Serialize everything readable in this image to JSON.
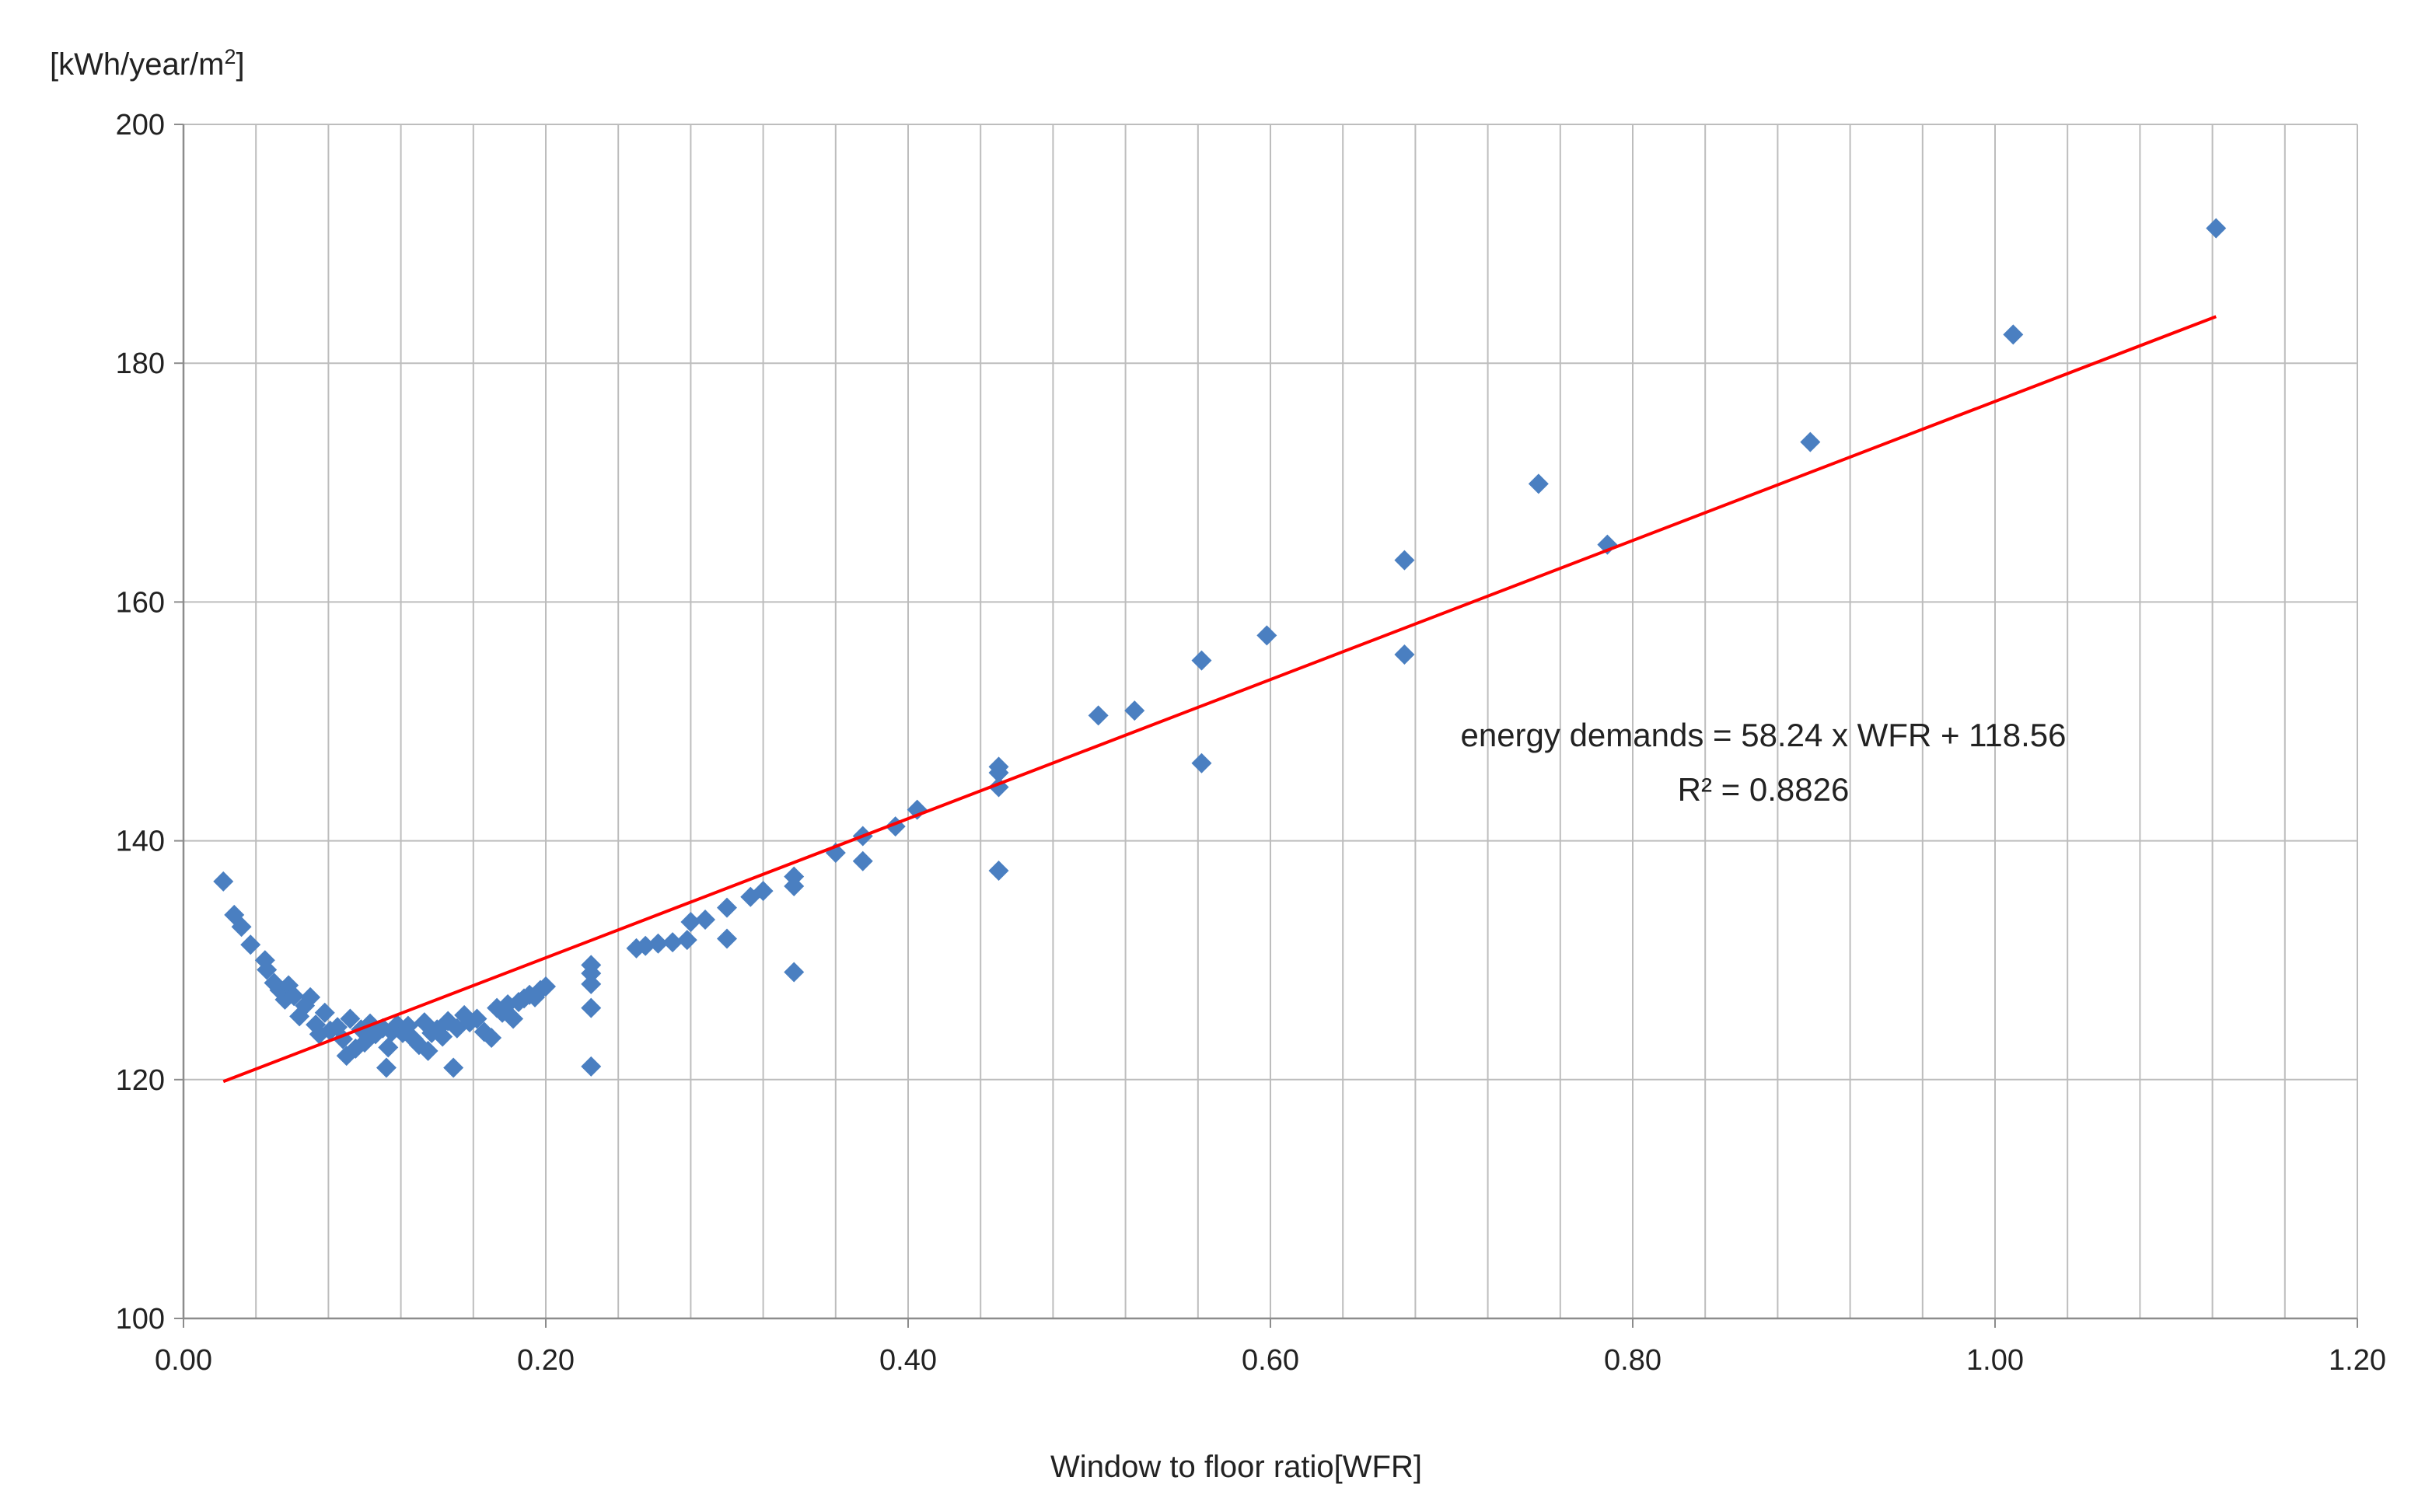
{
  "chart_data": {
    "type": "scatter",
    "title": "",
    "ylabel_main": "[kWh/year/m",
    "ylabel_sup": "2",
    "ylabel_close": "]",
    "xlabel": "Window to floor ratio[WFR]",
    "xlim": [
      0,
      1.2
    ],
    "ylim": [
      100,
      200
    ],
    "xticks": [
      "0.00",
      "0.20",
      "0.40",
      "0.60",
      "0.80",
      "1.00",
      "1.20"
    ],
    "yticks": [
      "100",
      "120",
      "140",
      "160",
      "180",
      "200"
    ],
    "minor_x_step": 0.04,
    "major_y_step": 20,
    "grid": true,
    "legend": "none",
    "series": [
      {
        "name": "energy demands",
        "marker": "diamond",
        "color": "#4a7fc1",
        "points": [
          [
            0.022,
            136.6
          ],
          [
            0.028,
            133.8
          ],
          [
            0.032,
            132.8
          ],
          [
            0.037,
            131.3
          ],
          [
            0.045,
            130.0
          ],
          [
            0.046,
            129.2
          ],
          [
            0.05,
            128.1
          ],
          [
            0.053,
            127.5
          ],
          [
            0.056,
            126.7
          ],
          [
            0.058,
            127.9
          ],
          [
            0.061,
            127.0
          ],
          [
            0.064,
            125.3
          ],
          [
            0.067,
            126.2
          ],
          [
            0.07,
            126.9
          ],
          [
            0.073,
            124.6
          ],
          [
            0.075,
            123.8
          ],
          [
            0.078,
            125.6
          ],
          [
            0.081,
            124.1
          ],
          [
            0.085,
            124.4
          ],
          [
            0.088,
            123.4
          ],
          [
            0.09,
            122.0
          ],
          [
            0.092,
            125.1
          ],
          [
            0.095,
            122.6
          ],
          [
            0.098,
            124.2
          ],
          [
            0.1,
            123.1
          ],
          [
            0.103,
            124.7
          ],
          [
            0.106,
            123.8
          ],
          [
            0.11,
            124.3
          ],
          [
            0.112,
            121.0
          ],
          [
            0.113,
            122.7
          ],
          [
            0.115,
            124.0
          ],
          [
            0.118,
            124.6
          ],
          [
            0.121,
            123.9
          ],
          [
            0.124,
            124.5
          ],
          [
            0.127,
            123.4
          ],
          [
            0.13,
            122.9
          ],
          [
            0.133,
            124.8
          ],
          [
            0.135,
            122.4
          ],
          [
            0.137,
            123.9
          ],
          [
            0.14,
            124.2
          ],
          [
            0.143,
            123.6
          ],
          [
            0.146,
            124.9
          ],
          [
            0.149,
            121.0
          ],
          [
            0.151,
            124.3
          ],
          [
            0.155,
            125.4
          ],
          [
            0.158,
            124.8
          ],
          [
            0.162,
            125.1
          ],
          [
            0.166,
            124.0
          ],
          [
            0.17,
            123.5
          ],
          [
            0.173,
            126.0
          ],
          [
            0.176,
            125.6
          ],
          [
            0.179,
            126.3
          ],
          [
            0.182,
            125.1
          ],
          [
            0.185,
            126.5
          ],
          [
            0.188,
            126.8
          ],
          [
            0.191,
            127.1
          ],
          [
            0.194,
            126.9
          ],
          [
            0.197,
            127.5
          ],
          [
            0.2,
            127.8
          ],
          [
            0.225,
            129.6
          ],
          [
            0.225,
            128.9
          ],
          [
            0.225,
            128.0
          ],
          [
            0.225,
            126.0
          ],
          [
            0.225,
            121.1
          ],
          [
            0.25,
            131.0
          ],
          [
            0.255,
            131.2
          ],
          [
            0.262,
            131.4
          ],
          [
            0.27,
            131.5
          ],
          [
            0.278,
            131.7
          ],
          [
            0.28,
            133.2
          ],
          [
            0.288,
            133.4
          ],
          [
            0.3,
            134.4
          ],
          [
            0.3,
            131.8
          ],
          [
            0.313,
            135.3
          ],
          [
            0.32,
            135.8
          ],
          [
            0.337,
            137.0
          ],
          [
            0.337,
            136.2
          ],
          [
            0.337,
            129.0
          ],
          [
            0.36,
            139.0
          ],
          [
            0.375,
            140.4
          ],
          [
            0.375,
            138.3
          ],
          [
            0.393,
            141.2
          ],
          [
            0.405,
            142.6
          ],
          [
            0.45,
            146.2
          ],
          [
            0.45,
            145.7
          ],
          [
            0.45,
            144.5
          ],
          [
            0.45,
            137.5
          ],
          [
            0.505,
            150.5
          ],
          [
            0.525,
            150.9
          ],
          [
            0.562,
            155.1
          ],
          [
            0.562,
            146.5
          ],
          [
            0.598,
            157.2
          ],
          [
            0.674,
            163.5
          ],
          [
            0.674,
            155.6
          ],
          [
            0.748,
            169.9
          ],
          [
            0.786,
            164.8
          ],
          [
            0.898,
            173.4
          ],
          [
            1.01,
            182.4
          ],
          [
            1.122,
            191.3
          ]
        ]
      }
    ],
    "trendline": {
      "color": "#ff0000",
      "slope": 58.24,
      "intercept": 118.56,
      "x_start": 0.022,
      "x_end": 1.122,
      "equation": "energy demands = 58.24 x WFR + 118.56",
      "r_squared": "R² = 0.8826"
    },
    "colors": {
      "grid": "#bdbdbd",
      "axis": "#8c8c8c",
      "text": "#222222"
    }
  }
}
